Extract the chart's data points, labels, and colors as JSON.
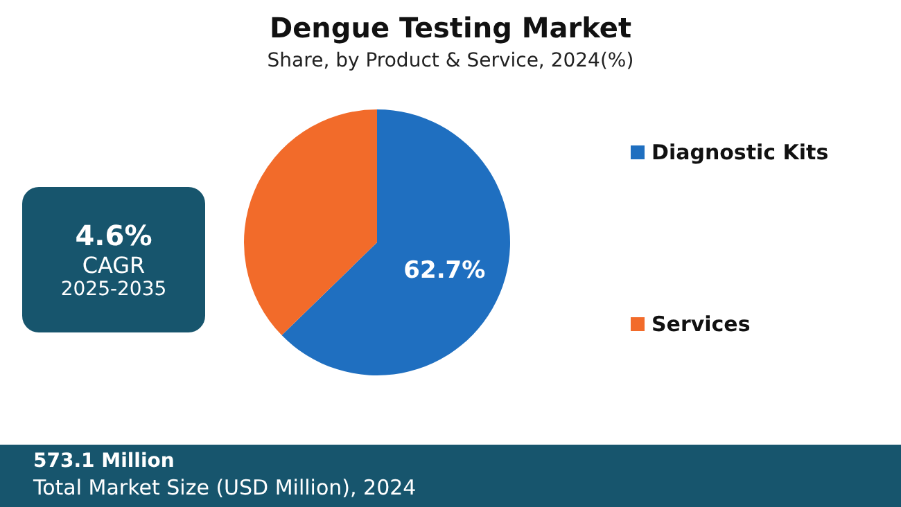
{
  "chart_data": {
    "type": "pie",
    "title": "Dengue Testing Market",
    "subtitle": "Share, by Product & Service, 2024(%)",
    "categories": [
      "Diagnostic Kits",
      "Services"
    ],
    "values": [
      62.7,
      37.3
    ],
    "colors": [
      "#1f6fc0",
      "#f26b2a"
    ],
    "value_labels": [
      "62.7%",
      null
    ],
    "legend": "right",
    "annotations": [
      "4.6%",
      "CAGR",
      "2025-2035",
      "573.1 Million",
      "Total Market Size (USD Million), 2024"
    ]
  }
}
